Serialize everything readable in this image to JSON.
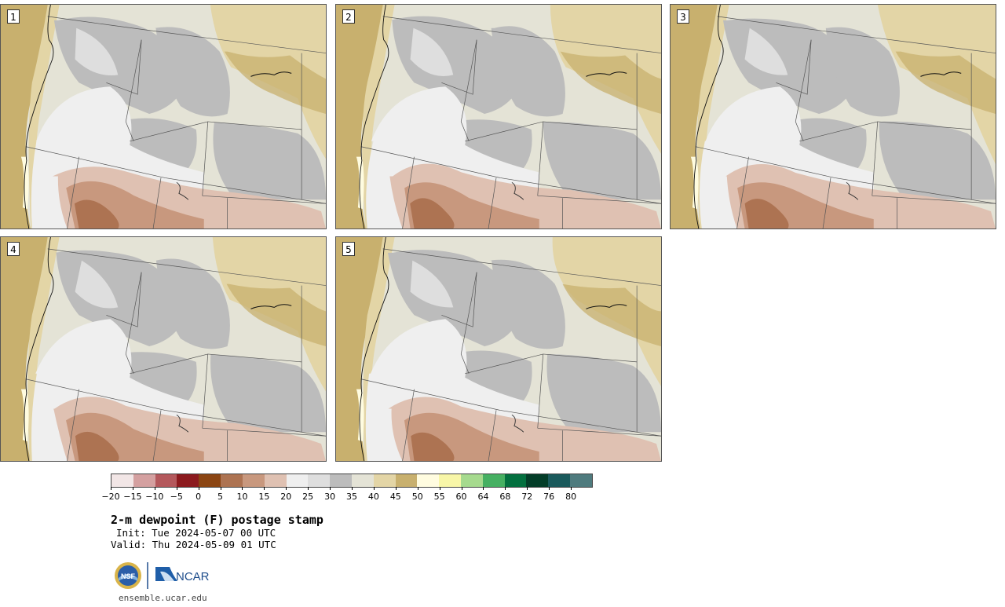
{
  "panels": [
    {
      "label": "1",
      "variant": 0
    },
    {
      "label": "2",
      "variant": 1
    },
    {
      "label": "3",
      "variant": 2
    },
    {
      "label": "4",
      "variant": 3
    },
    {
      "label": "5",
      "variant": 4
    }
  ],
  "legend": {
    "colors": [
      "#f2e6e6",
      "#d4a0a0",
      "#b4585c",
      "#8c1a1e",
      "#8b4513",
      "#ad7352",
      "#c8987e",
      "#dfc1b2",
      "#efefef",
      "#dedede",
      "#bcbcbc",
      "#e4e3d6",
      "#e3d5a6",
      "#c8b06e",
      "#fffce0",
      "#f8f6a8",
      "#a6da8e",
      "#46b062",
      "#03703f",
      "#033d28",
      "#1a5a5c",
      "#4f7b7e"
    ],
    "tick_labels": [
      "−20",
      "−15",
      "−10",
      "−5",
      "0",
      "5",
      "10",
      "15",
      "20",
      "25",
      "30",
      "35",
      "40",
      "45",
      "50",
      "55",
      "60",
      "64",
      "68",
      "72",
      "76",
      "80"
    ]
  },
  "title": "2-m dewpoint (F) postage stamp",
  "init": "Init: Tue 2024-05-07 00 UTC",
  "valid": "Valid: Thu 2024-05-09 01 UTC",
  "logos": {
    "nsf": "NSF",
    "ncar": "NCAR"
  },
  "site": "ensemble.ucar.edu"
}
